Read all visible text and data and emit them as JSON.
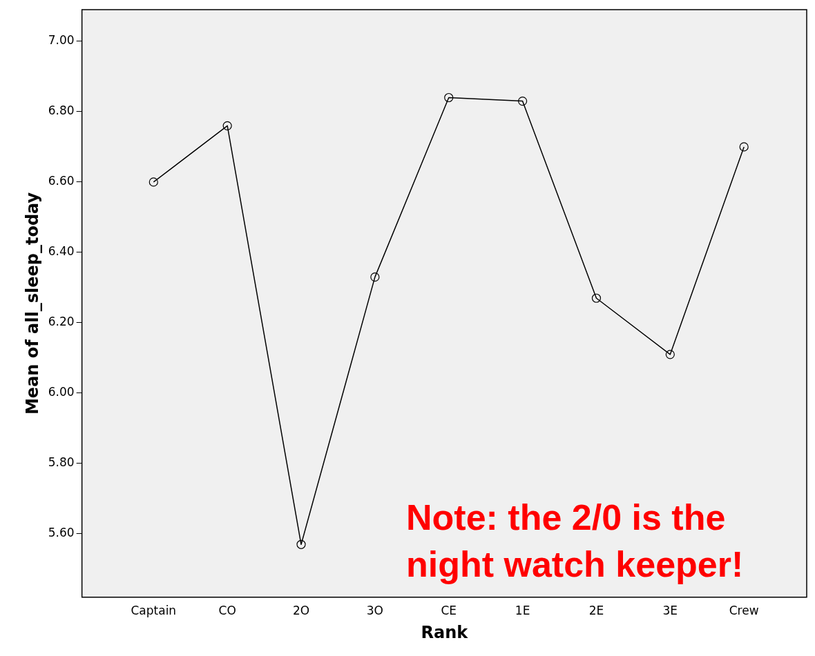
{
  "chart_data": {
    "type": "line",
    "xlabel": "Rank",
    "ylabel": "Mean of all_sleep_today",
    "categories": [
      "Captain",
      "CO",
      "2O",
      "3O",
      "CE",
      "1E",
      "2E",
      "3E",
      "Crew"
    ],
    "series": [
      {
        "color": "#000000",
        "values": [
          6.6,
          6.76,
          5.57,
          6.33,
          6.84,
          6.83,
          6.27,
          6.11,
          6.7
        ]
      }
    ],
    "ylim": [
      5.42,
      7.09
    ],
    "yticks": [
      {
        "value": 5.6,
        "label": "5.60"
      },
      {
        "value": 5.8,
        "label": "5.80"
      },
      {
        "value": 6.0,
        "label": "6.00"
      },
      {
        "value": 6.2,
        "label": "6.20"
      },
      {
        "value": 6.4,
        "label": "6.40"
      },
      {
        "value": 6.6,
        "label": "6.60"
      },
      {
        "value": 6.8,
        "label": "6.80"
      },
      {
        "value": 7.0,
        "label": "7.00"
      }
    ],
    "grid": false,
    "legend": false,
    "marker": "circle",
    "line_style": "solid",
    "annotations": [
      "Note: the 2/0 is the night watch keeper!"
    ]
  }
}
